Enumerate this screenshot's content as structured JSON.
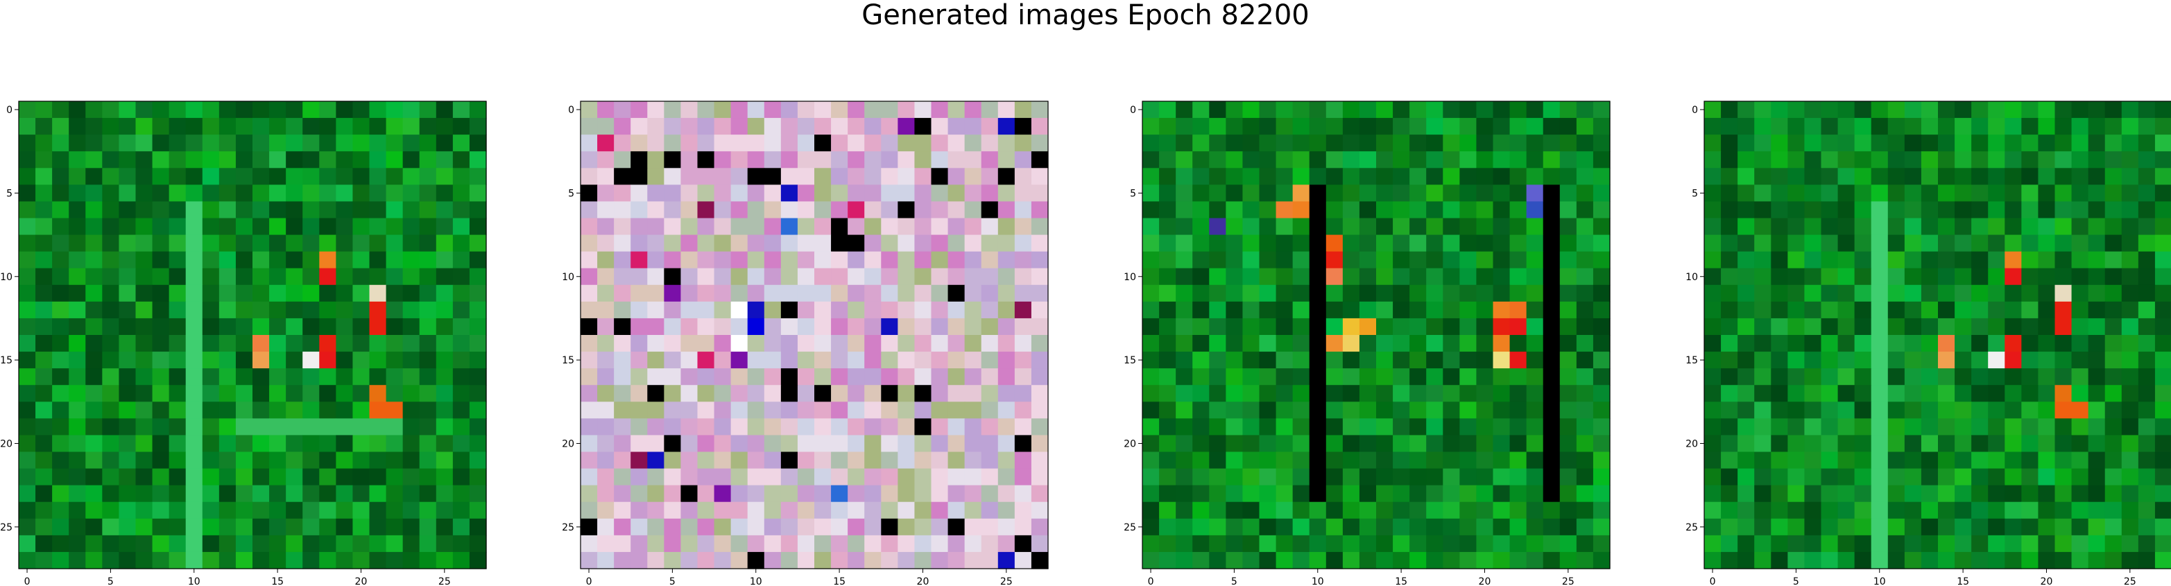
{
  "figure": {
    "title": "Generated images Epoch 82200"
  },
  "chart_data": [
    {
      "type": "heatmap",
      "colormap": "green",
      "xticks": [
        0,
        5,
        10,
        15,
        20,
        25
      ],
      "yticks": [
        0,
        5,
        10,
        15,
        20,
        25
      ],
      "xlim": [
        -0.5,
        27.5
      ],
      "ylim": [
        27.5,
        -0.5
      ]
    },
    {
      "type": "heatmap",
      "colormap": "pastel-multicolor",
      "xticks": [
        0,
        5,
        10,
        15,
        20,
        25
      ],
      "yticks": [
        0,
        5,
        10,
        15,
        20,
        25
      ],
      "xlim": [
        -0.5,
        27.5
      ],
      "ylim": [
        27.5,
        -0.5
      ]
    },
    {
      "type": "heatmap",
      "colormap": "green",
      "xticks": [
        0,
        5,
        10,
        15,
        20,
        25
      ],
      "yticks": [
        0,
        5,
        10,
        15,
        20,
        25
      ],
      "xlim": [
        -0.5,
        27.5
      ],
      "ylim": [
        27.5,
        -0.5
      ]
    },
    {
      "type": "heatmap",
      "colormap": "green",
      "xticks": [
        0,
        5,
        10,
        15,
        20,
        25
      ],
      "yticks": [
        0,
        5,
        10,
        15,
        20,
        25
      ],
      "xlim": [
        -0.5,
        27.5
      ],
      "ylim": [
        27.5,
        -0.5
      ]
    }
  ]
}
